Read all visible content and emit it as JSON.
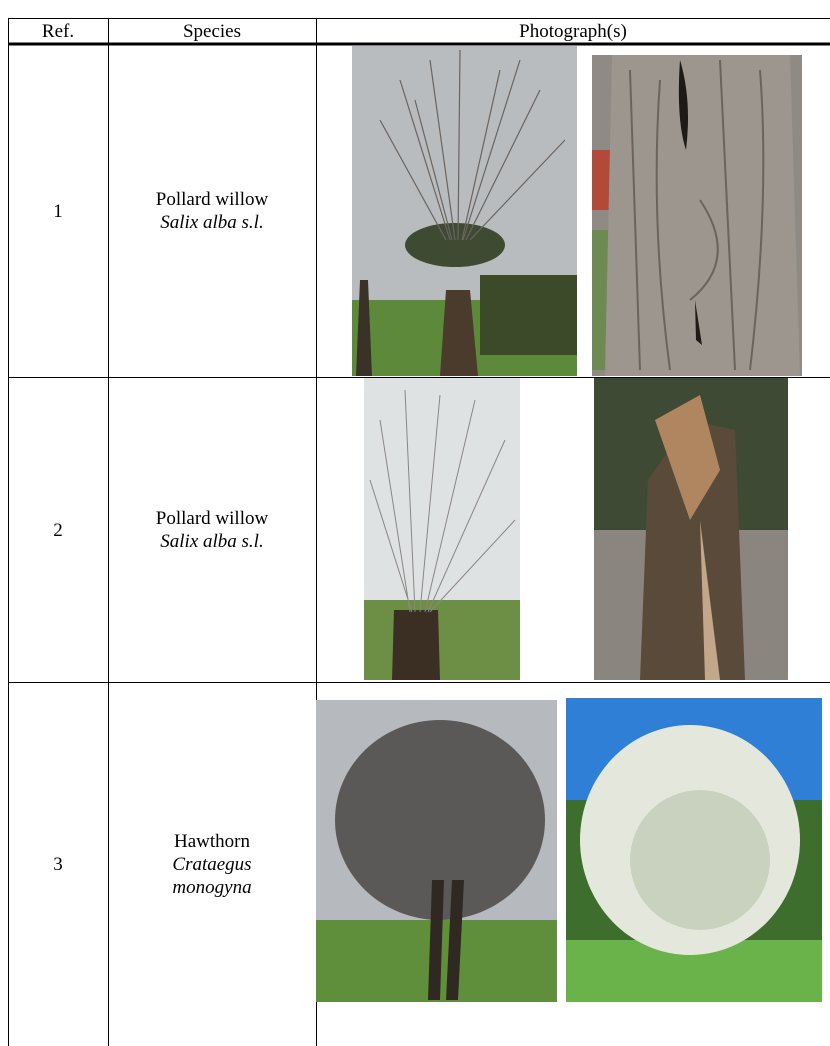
{
  "table": {
    "header": [
      "Ref.",
      "Species",
      "Photograph(s)"
    ],
    "rows": [
      {
        "ref": "1",
        "common_name": "Pollard willow",
        "scientific_name": "Salix alba s.l."
      },
      {
        "ref": "2",
        "common_name": "Pollard willow",
        "scientific_name": "Salix alba s.l."
      },
      {
        "ref": "3",
        "common_name": "Hawthorn",
        "scientific_name": "Crataegus monogyna"
      }
    ]
  }
}
